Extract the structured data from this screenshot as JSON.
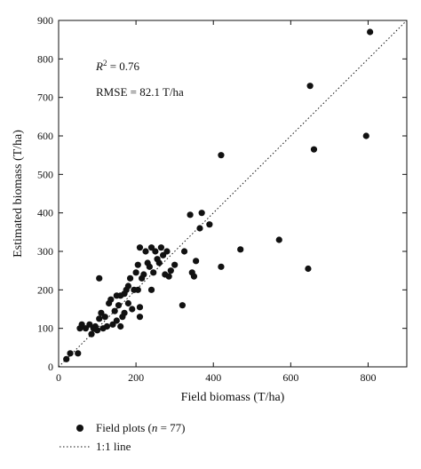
{
  "chart_data": {
    "type": "scatter",
    "xlabel": "Field biomass (T/ha)",
    "ylabel": "Estimated biomass (T/ha)",
    "xlim": [
      0,
      900
    ],
    "ylim": [
      0,
      900
    ],
    "xticks": [
      0,
      200,
      400,
      600,
      800
    ],
    "yticks": [
      0,
      100,
      200,
      300,
      400,
      500,
      600,
      700,
      800,
      900
    ],
    "grid": false,
    "annotations": {
      "r2_label": "R",
      "r2_sup": "2",
      "r2_value": " = 0.76",
      "rmse": "RMSE = 82.1 T/ha"
    },
    "legend": {
      "placement": "bottom-left-outside",
      "points_label_pre": "Field plots (",
      "points_label_n": "n",
      "points_label_post": " = 77)",
      "line_label": "1:1 line"
    },
    "reference_line": {
      "name": "1:1 line",
      "from": [
        0,
        0
      ],
      "to": [
        900,
        900
      ],
      "style": "dotted"
    },
    "series": [
      {
        "marker": "filled-circle",
        "points": [
          [
            20,
            20
          ],
          [
            30,
            35
          ],
          [
            50,
            35
          ],
          [
            55,
            100
          ],
          [
            60,
            110
          ],
          [
            70,
            100
          ],
          [
            80,
            110
          ],
          [
            85,
            85
          ],
          [
            90,
            100
          ],
          [
            95,
            105
          ],
          [
            100,
            95
          ],
          [
            105,
            125
          ],
          [
            110,
            140
          ],
          [
            115,
            100
          ],
          [
            120,
            130
          ],
          [
            125,
            105
          ],
          [
            130,
            165
          ],
          [
            135,
            175
          ],
          [
            140,
            110
          ],
          [
            145,
            145
          ],
          [
            150,
            120
          ],
          [
            150,
            185
          ],
          [
            155,
            160
          ],
          [
            160,
            105
          ],
          [
            160,
            185
          ],
          [
            165,
            130
          ],
          [
            170,
            140
          ],
          [
            170,
            190
          ],
          [
            175,
            200
          ],
          [
            180,
            165
          ],
          [
            180,
            210
          ],
          [
            185,
            230
          ],
          [
            190,
            150
          ],
          [
            195,
            200
          ],
          [
            200,
            245
          ],
          [
            205,
            200
          ],
          [
            205,
            265
          ],
          [
            210,
            155
          ],
          [
            210,
            130
          ],
          [
            215,
            230
          ],
          [
            220,
            240
          ],
          [
            225,
            300
          ],
          [
            230,
            270
          ],
          [
            235,
            260
          ],
          [
            240,
            310
          ],
          [
            240,
            200
          ],
          [
            245,
            245
          ],
          [
            250,
            300
          ],
          [
            255,
            280
          ],
          [
            260,
            270
          ],
          [
            265,
            310
          ],
          [
            270,
            290
          ],
          [
            275,
            240
          ],
          [
            280,
            300
          ],
          [
            285,
            235
          ],
          [
            290,
            250
          ],
          [
            300,
            265
          ],
          [
            320,
            160
          ],
          [
            325,
            300
          ],
          [
            340,
            395
          ],
          [
            345,
            245
          ],
          [
            350,
            235
          ],
          [
            355,
            275
          ],
          [
            365,
            360
          ],
          [
            370,
            400
          ],
          [
            390,
            370
          ],
          [
            420,
            260
          ],
          [
            420,
            550
          ],
          [
            470,
            305
          ],
          [
            570,
            330
          ],
          [
            645,
            255
          ],
          [
            650,
            730
          ],
          [
            660,
            565
          ],
          [
            795,
            600
          ],
          [
            805,
            870
          ],
          [
            105,
            230
          ],
          [
            210,
            310
          ]
        ]
      }
    ]
  }
}
